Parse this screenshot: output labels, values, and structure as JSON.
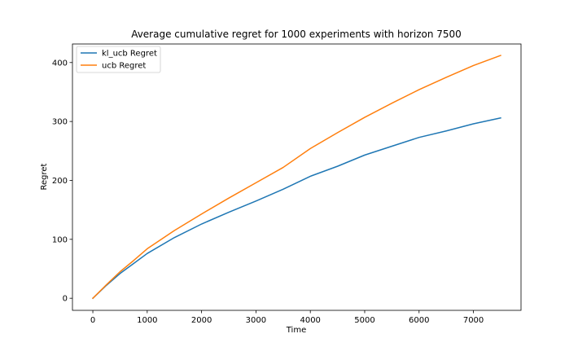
{
  "chart_data": {
    "type": "line",
    "title": "Average cumulative regret for 1000 experiments with horizon 7500",
    "xlabel": "Time",
    "ylabel": "Regret",
    "xlim": [
      -375,
      7875
    ],
    "ylim": [
      -20.5,
      431.5
    ],
    "xticks": [
      0,
      1000,
      2000,
      3000,
      4000,
      5000,
      6000,
      7000
    ],
    "yticks": [
      0,
      100,
      200,
      300,
      400
    ],
    "grid": false,
    "legend_position": "upper-left",
    "series": [
      {
        "name": "kl_ucb Regret",
        "color": "#1f77b4",
        "x": [
          0,
          250,
          500,
          750,
          1000,
          1500,
          2000,
          2500,
          3000,
          3500,
          4000,
          4500,
          5000,
          5500,
          6000,
          6500,
          7000,
          7500
        ],
        "y": [
          0,
          22,
          42,
          59,
          76,
          103,
          126,
          146,
          165,
          185,
          207,
          224,
          243,
          258,
          273,
          284,
          296,
          306
        ]
      },
      {
        "name": "ucb Regret",
        "color": "#ff7f0e",
        "x": [
          0,
          250,
          500,
          750,
          1000,
          1500,
          2000,
          2500,
          3000,
          3500,
          4000,
          4500,
          5000,
          5500,
          6000,
          6500,
          7000,
          7500
        ],
        "y": [
          0,
          23,
          45,
          64,
          84,
          115,
          143,
          170,
          196,
          222,
          254,
          281,
          307,
          331,
          354,
          375,
          395,
          412
        ]
      }
    ]
  }
}
